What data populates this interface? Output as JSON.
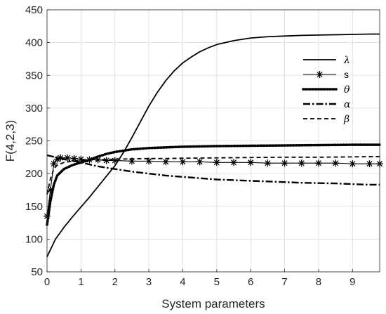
{
  "chart_data": {
    "type": "line",
    "title": "",
    "xlabel": "System parameters",
    "ylabel": "F(4,2,3)",
    "xlim": [
      0,
      9.8
    ],
    "ylim": [
      50,
      450
    ],
    "xticks": [
      0,
      1,
      2,
      3,
      4,
      5,
      6,
      7,
      8,
      9
    ],
    "yticks": [
      50,
      100,
      150,
      200,
      250,
      300,
      350,
      400,
      450
    ],
    "grid": true,
    "legend_position": "top-right",
    "series": [
      {
        "name": "λ",
        "style": "solid",
        "marker": "none",
        "x": [
          0,
          0.25,
          0.5,
          0.75,
          1.0,
          1.25,
          1.5,
          1.75,
          2.0,
          2.25,
          2.5,
          2.75,
          3.0,
          3.25,
          3.5,
          3.75,
          4.0,
          4.25,
          4.5,
          4.75,
          5.0,
          5.5,
          6.0,
          6.5,
          7.0,
          7.5,
          8.0,
          8.5,
          9.0,
          9.5,
          9.8
        ],
        "y": [
          73,
          100,
          118,
          134,
          149,
          164,
          180,
          196,
          212,
          232,
          255,
          279,
          303,
          324,
          342,
          357,
          369,
          378,
          386,
          392,
          397,
          403,
          407,
          409,
          410,
          411,
          411.5,
          412,
          412.5,
          413,
          413
        ]
      },
      {
        "name": "s",
        "style": "solid",
        "marker": "star",
        "x": [
          0,
          0.1,
          0.2,
          0.3,
          0.4,
          0.6,
          0.8,
          1.0,
          1.25,
          1.5,
          1.75,
          2.0,
          2.5,
          3.0,
          3.5,
          4.0,
          4.5,
          5.0,
          5.5,
          6.0,
          6.5,
          7.0,
          7.5,
          8.0,
          8.5,
          9.0,
          9.5,
          9.8
        ],
        "y": [
          135,
          175,
          215,
          222,
          224,
          224,
          223,
          222,
          221,
          221,
          220,
          220,
          219,
          219,
          218,
          218,
          218,
          217,
          217,
          217,
          216,
          216,
          216,
          216,
          216,
          215,
          215,
          215
        ]
      },
      {
        "name": "θ",
        "style": "dotted",
        "marker": "none",
        "x": [
          0,
          0.1,
          0.2,
          0.3,
          0.5,
          0.75,
          1.0,
          1.25,
          1.5,
          1.75,
          2.0,
          2.5,
          3.0,
          3.5,
          4.0,
          4.5,
          5.0,
          6.0,
          7.0,
          8.0,
          9.0,
          9.8
        ],
        "y": [
          122,
          158,
          183,
          197,
          207,
          213,
          217,
          221,
          226,
          230,
          233,
          237,
          239,
          240,
          241,
          241.5,
          242,
          242.5,
          243,
          243.5,
          244,
          244
        ]
      },
      {
        "name": "α",
        "style": "dashdot",
        "marker": "none",
        "x": [
          0,
          0.5,
          1.0,
          1.5,
          2.0,
          2.5,
          3.0,
          3.5,
          4.0,
          4.5,
          5.0,
          5.5,
          6.0,
          6.5,
          7.0,
          7.5,
          8.0,
          8.5,
          9.0,
          9.5,
          9.8
        ],
        "y": [
          228,
          222,
          217,
          211,
          207,
          203,
          200,
          197,
          195,
          193,
          191,
          190,
          189,
          188,
          187,
          186,
          185.5,
          185,
          184,
          183,
          183
        ]
      },
      {
        "name": "β",
        "style": "dashed",
        "marker": "none",
        "x": [
          0,
          0.1,
          0.2,
          0.3,
          0.5,
          0.75,
          1.0,
          1.5,
          2.0,
          2.5,
          3.0,
          3.5,
          4.0,
          5.0,
          6.0,
          7.0,
          8.0,
          9.0,
          9.8
        ],
        "y": [
          168,
          192,
          207,
          213,
          217,
          219,
          220,
          221,
          222,
          222.5,
          223,
          223,
          223.5,
          224,
          224.5,
          225,
          225,
          225.5,
          226
        ]
      }
    ]
  }
}
